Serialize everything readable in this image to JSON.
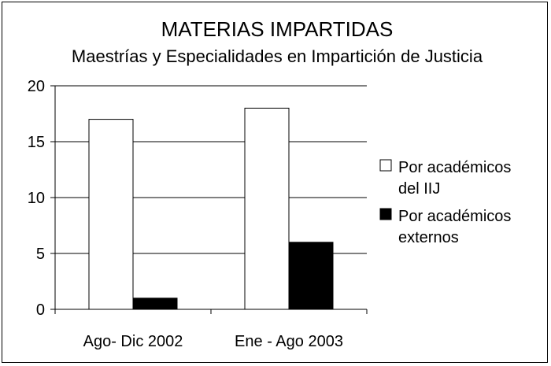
{
  "chart_data": {
    "type": "bar",
    "title": "MATERIAS IMPARTIDAS",
    "subtitle": "Maestrías y Especialidades en Impartición de Justicia",
    "xlabel": "",
    "ylabel": "",
    "categories": [
      "Ago- Dic 2002",
      "Ene - Ago 2003"
    ],
    "series": [
      {
        "name_lines": [
          "Por académicos",
          "del IIJ"
        ],
        "color": "#ffffff",
        "values": [
          17,
          18
        ]
      },
      {
        "name_lines": [
          "Por académicos",
          "externos"
        ],
        "color": "#000000",
        "values": [
          1,
          6
        ]
      }
    ],
    "ylim": [
      0,
      20
    ],
    "yticks": [
      0,
      5,
      10,
      15,
      20
    ],
    "grid": true,
    "legend": "right"
  }
}
